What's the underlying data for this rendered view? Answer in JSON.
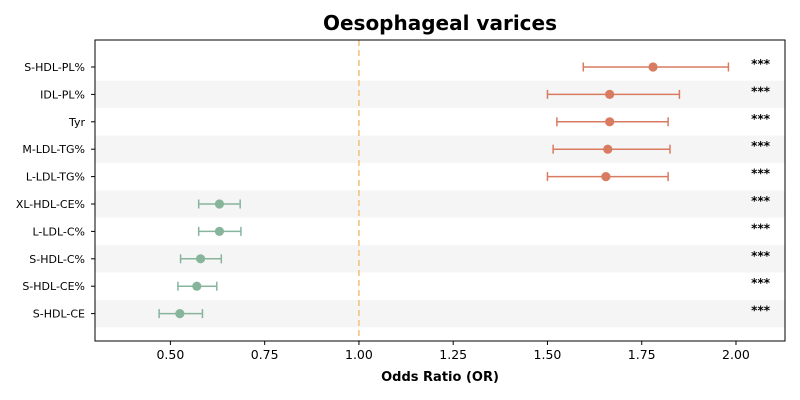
{
  "chart_data": {
    "type": "forest",
    "title": "Oesophageal varices",
    "xlabel": "Odds Ratio (OR)",
    "ylabel": "",
    "xlim": [
      0.3,
      2.13
    ],
    "xticks": [
      0.5,
      0.75,
      1.0,
      1.25,
      1.5,
      1.75,
      2.0
    ],
    "xtick_labels": [
      "0.50",
      "0.75",
      "1.00",
      "1.25",
      "1.50",
      "1.75",
      "2.00"
    ],
    "reference_line": 1.0,
    "grid": false,
    "colors": {
      "positive": "#d97b60",
      "negative": "#87b59c",
      "reference": "#f2c078",
      "band": "#f5f5f5"
    },
    "rows": [
      {
        "label": "S-HDL-PL%",
        "or": 1.78,
        "lower": 1.595,
        "upper": 1.98,
        "significance": "***"
      },
      {
        "label": "IDL-PL%",
        "or": 1.665,
        "lower": 1.5,
        "upper": 1.85,
        "significance": "***"
      },
      {
        "label": "Tyr",
        "or": 1.665,
        "lower": 1.525,
        "upper": 1.82,
        "significance": "***"
      },
      {
        "label": "M-LDL-TG%",
        "or": 1.66,
        "lower": 1.515,
        "upper": 1.825,
        "significance": "***"
      },
      {
        "label": "L-LDL-TG%",
        "or": 1.655,
        "lower": 1.5,
        "upper": 1.82,
        "significance": "***"
      },
      {
        "label": "XL-HDL-CE%",
        "or": 0.63,
        "lower": 0.575,
        "upper": 0.685,
        "significance": "***"
      },
      {
        "label": "L-LDL-C%",
        "or": 0.63,
        "lower": 0.575,
        "upper": 0.687,
        "significance": "***"
      },
      {
        "label": "S-HDL-C%",
        "or": 0.58,
        "lower": 0.527,
        "upper": 0.635,
        "significance": "***"
      },
      {
        "label": "S-HDL-CE%",
        "or": 0.57,
        "lower": 0.52,
        "upper": 0.623,
        "significance": "***"
      },
      {
        "label": "S-HDL-CE",
        "or": 0.525,
        "lower": 0.47,
        "upper": 0.585,
        "significance": "***"
      }
    ]
  }
}
